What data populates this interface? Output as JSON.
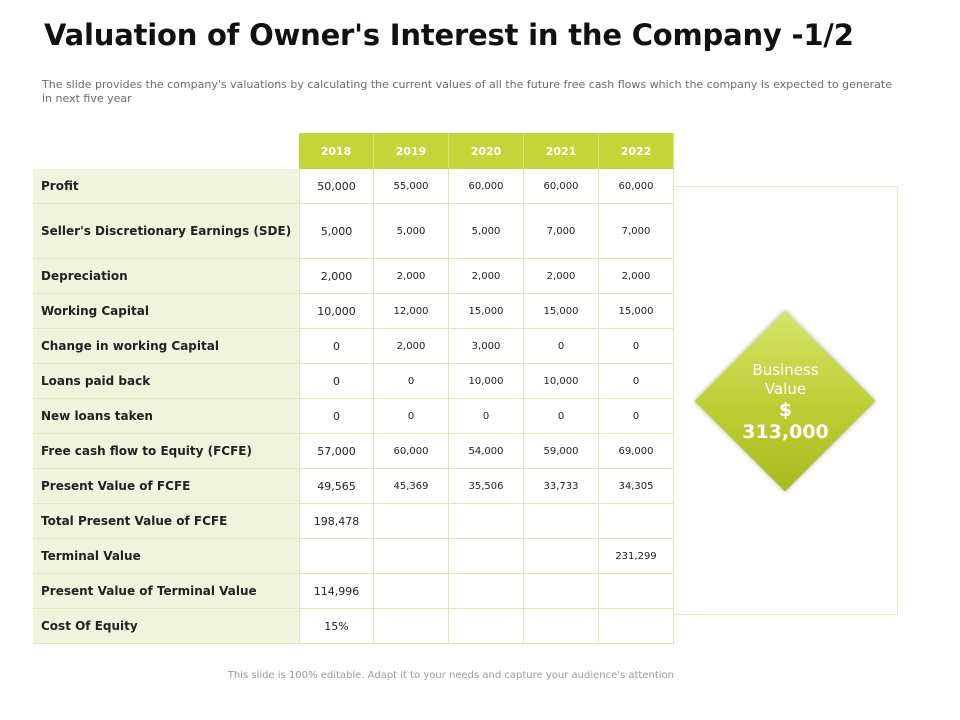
{
  "page": {
    "title": "Valuation of Owner's Interest in the Company -1/2",
    "subtitle": "The slide provides the company's valuations by calculating the current values of all the future free cash flows which the company is expected to generate in next five year",
    "footer": "This slide is 100% editable. Adapt it to your needs and capture your audience's attention"
  },
  "table": {
    "years": [
      "2018",
      "2019",
      "2020",
      "2021",
      "2022"
    ],
    "rows": [
      {
        "label": "Profit",
        "values": [
          "50,000",
          "55,000",
          "60,000",
          "60,000",
          "60,000"
        ]
      },
      {
        "label": "Seller's Discretionary Earnings (SDE)",
        "values": [
          "5,000",
          "5,000",
          "5,000",
          "7,000",
          "7,000"
        ]
      },
      {
        "label": "Depreciation",
        "values": [
          "2,000",
          "2,000",
          "2,000",
          "2,000",
          "2,000"
        ]
      },
      {
        "label": "Working Capital",
        "values": [
          "10,000",
          "12,000",
          "15,000",
          "15,000",
          "15,000"
        ]
      },
      {
        "label": "Change in working Capital",
        "values": [
          "0",
          "2,000",
          "3,000",
          "0",
          "0"
        ]
      },
      {
        "label": "Loans paid back",
        "values": [
          "0",
          "0",
          "10,000",
          "10,000",
          "0"
        ]
      },
      {
        "label": "New loans taken",
        "values": [
          "0",
          "0",
          "0",
          "0",
          "0"
        ]
      },
      {
        "label": "Free cash flow to Equity (FCFE)",
        "values": [
          "57,000",
          "60,000",
          "54,000",
          "59,000",
          "69,000"
        ]
      },
      {
        "label": "Present Value of FCFE",
        "values": [
          "49,565",
          "45,369",
          "35,506",
          "33,733",
          "34,305"
        ]
      },
      {
        "label": "Total Present Value of FCFE",
        "values": [
          "198,478",
          "",
          "",
          "",
          ""
        ]
      },
      {
        "label": "Terminal Value",
        "values": [
          "",
          "",
          "",
          "",
          "231,299"
        ]
      },
      {
        "label": "Present Value of Terminal Value",
        "values": [
          "114,996",
          "",
          "",
          "",
          ""
        ]
      },
      {
        "label": "Cost Of Equity",
        "values": [
          "15%",
          "",
          "",
          "",
          ""
        ]
      }
    ]
  },
  "business_value": {
    "label_line1": "Business",
    "label_line2": "Value",
    "currency": "$",
    "amount": "313,000",
    "fill_color": "#bccd33"
  }
}
